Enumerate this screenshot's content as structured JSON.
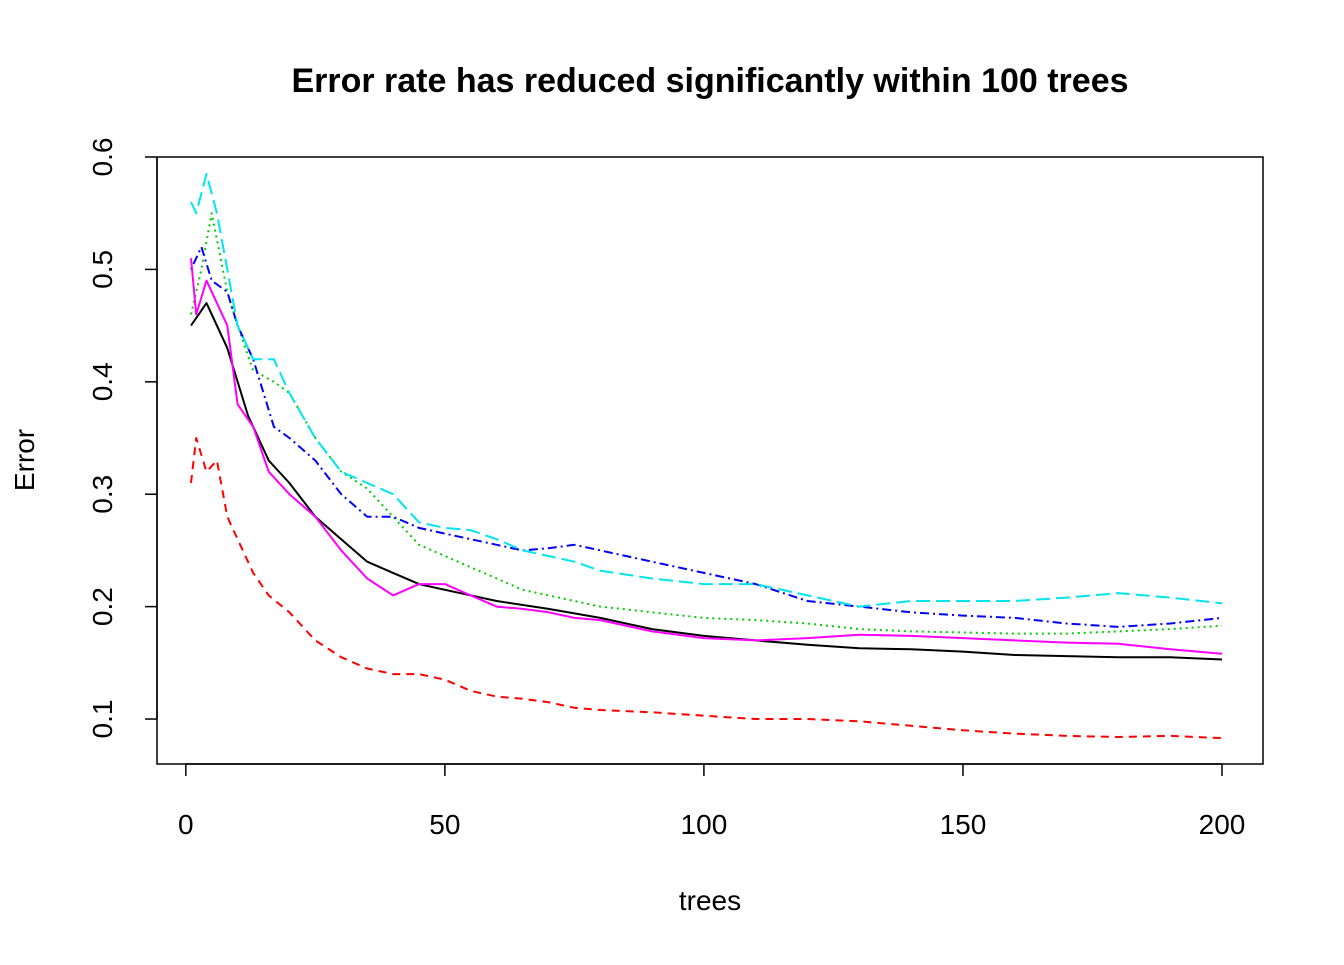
{
  "chart_data": {
    "type": "line",
    "title": "Error rate has reduced significantly within 100 trees",
    "xlabel": "trees",
    "ylabel": "Error",
    "xlim": [
      1,
      200
    ],
    "ylim": [
      0.06,
      0.6
    ],
    "xticks": [
      0,
      50,
      100,
      150,
      200
    ],
    "yticks": [
      0.1,
      0.2,
      0.3,
      0.4,
      0.5,
      0.6
    ],
    "legend": "none",
    "grid": false,
    "series": [
      {
        "color": "#000000",
        "dash": "solid",
        "points": [
          [
            1,
            0.45
          ],
          [
            4,
            0.47
          ],
          [
            8,
            0.43
          ],
          [
            12,
            0.37
          ],
          [
            16,
            0.33
          ],
          [
            20,
            0.31
          ],
          [
            25,
            0.28
          ],
          [
            30,
            0.26
          ],
          [
            35,
            0.24
          ],
          [
            40,
            0.23
          ],
          [
            45,
            0.22
          ],
          [
            50,
            0.215
          ],
          [
            60,
            0.205
          ],
          [
            70,
            0.198
          ],
          [
            80,
            0.19
          ],
          [
            90,
            0.18
          ],
          [
            100,
            0.174
          ],
          [
            110,
            0.17
          ],
          [
            120,
            0.166
          ],
          [
            130,
            0.163
          ],
          [
            140,
            0.162
          ],
          [
            150,
            0.16
          ],
          [
            160,
            0.157
          ],
          [
            170,
            0.156
          ],
          [
            180,
            0.155
          ],
          [
            190,
            0.155
          ],
          [
            200,
            0.153
          ]
        ]
      },
      {
        "color": "#ff0000",
        "dash": "dashed",
        "points": [
          [
            1,
            0.31
          ],
          [
            2,
            0.35
          ],
          [
            4,
            0.32
          ],
          [
            6,
            0.33
          ],
          [
            8,
            0.28
          ],
          [
            10,
            0.26
          ],
          [
            13,
            0.23
          ],
          [
            16,
            0.21
          ],
          [
            20,
            0.195
          ],
          [
            25,
            0.17
          ],
          [
            30,
            0.155
          ],
          [
            35,
            0.145
          ],
          [
            40,
            0.14
          ],
          [
            45,
            0.14
          ],
          [
            50,
            0.135
          ],
          [
            55,
            0.125
          ],
          [
            60,
            0.12
          ],
          [
            65,
            0.118
          ],
          [
            70,
            0.115
          ],
          [
            75,
            0.11
          ],
          [
            80,
            0.108
          ],
          [
            90,
            0.106
          ],
          [
            100,
            0.103
          ],
          [
            110,
            0.1
          ],
          [
            120,
            0.1
          ],
          [
            130,
            0.098
          ],
          [
            140,
            0.094
          ],
          [
            150,
            0.09
          ],
          [
            160,
            0.087
          ],
          [
            170,
            0.085
          ],
          [
            180,
            0.084
          ],
          [
            190,
            0.085
          ],
          [
            200,
            0.083
          ]
        ]
      },
      {
        "color": "#00cd00",
        "dash": "dotted",
        "points": [
          [
            1,
            0.46
          ],
          [
            3,
            0.5
          ],
          [
            5,
            0.55
          ],
          [
            8,
            0.48
          ],
          [
            10,
            0.45
          ],
          [
            13,
            0.41
          ],
          [
            17,
            0.4
          ],
          [
            20,
            0.39
          ],
          [
            25,
            0.35
          ],
          [
            30,
            0.32
          ],
          [
            35,
            0.305
          ],
          [
            40,
            0.28
          ],
          [
            45,
            0.255
          ],
          [
            50,
            0.245
          ],
          [
            55,
            0.235
          ],
          [
            60,
            0.225
          ],
          [
            65,
            0.215
          ],
          [
            70,
            0.21
          ],
          [
            75,
            0.205
          ],
          [
            80,
            0.2
          ],
          [
            90,
            0.195
          ],
          [
            100,
            0.19
          ],
          [
            110,
            0.188
          ],
          [
            120,
            0.185
          ],
          [
            130,
            0.18
          ],
          [
            140,
            0.178
          ],
          [
            150,
            0.177
          ],
          [
            160,
            0.176
          ],
          [
            170,
            0.176
          ],
          [
            180,
            0.178
          ],
          [
            190,
            0.18
          ],
          [
            200,
            0.183
          ]
        ]
      },
      {
        "color": "#0000ff",
        "dash": "dotdash",
        "points": [
          [
            1,
            0.5
          ],
          [
            3,
            0.52
          ],
          [
            5,
            0.49
          ],
          [
            8,
            0.48
          ],
          [
            10,
            0.45
          ],
          [
            13,
            0.42
          ],
          [
            17,
            0.36
          ],
          [
            20,
            0.35
          ],
          [
            25,
            0.33
          ],
          [
            30,
            0.3
          ],
          [
            35,
            0.28
          ],
          [
            40,
            0.28
          ],
          [
            45,
            0.27
          ],
          [
            50,
            0.265
          ],
          [
            55,
            0.26
          ],
          [
            60,
            0.255
          ],
          [
            65,
            0.25
          ],
          [
            70,
            0.252
          ],
          [
            75,
            0.255
          ],
          [
            80,
            0.25
          ],
          [
            90,
            0.24
          ],
          [
            100,
            0.23
          ],
          [
            110,
            0.22
          ],
          [
            120,
            0.205
          ],
          [
            130,
            0.2
          ],
          [
            140,
            0.195
          ],
          [
            150,
            0.192
          ],
          [
            160,
            0.19
          ],
          [
            170,
            0.185
          ],
          [
            180,
            0.182
          ],
          [
            190,
            0.185
          ],
          [
            200,
            0.19
          ]
        ]
      },
      {
        "color": "#00e5ee",
        "dash": "longdash",
        "points": [
          [
            1,
            0.56
          ],
          [
            2,
            0.55
          ],
          [
            4,
            0.585
          ],
          [
            6,
            0.55
          ],
          [
            8,
            0.5
          ],
          [
            10,
            0.45
          ],
          [
            13,
            0.42
          ],
          [
            17,
            0.42
          ],
          [
            20,
            0.39
          ],
          [
            25,
            0.35
          ],
          [
            30,
            0.32
          ],
          [
            35,
            0.31
          ],
          [
            40,
            0.3
          ],
          [
            45,
            0.275
          ],
          [
            50,
            0.27
          ],
          [
            55,
            0.268
          ],
          [
            60,
            0.26
          ],
          [
            65,
            0.25
          ],
          [
            70,
            0.245
          ],
          [
            75,
            0.24
          ],
          [
            80,
            0.232
          ],
          [
            90,
            0.225
          ],
          [
            100,
            0.22
          ],
          [
            110,
            0.22
          ],
          [
            120,
            0.21
          ],
          [
            130,
            0.2
          ],
          [
            140,
            0.205
          ],
          [
            150,
            0.205
          ],
          [
            160,
            0.205
          ],
          [
            170,
            0.208
          ],
          [
            180,
            0.212
          ],
          [
            190,
            0.208
          ],
          [
            200,
            0.203
          ]
        ]
      },
      {
        "color": "#ff00ff",
        "dash": "solid",
        "points": [
          [
            1,
            0.51
          ],
          [
            2,
            0.46
          ],
          [
            4,
            0.49
          ],
          [
            6,
            0.47
          ],
          [
            8,
            0.45
          ],
          [
            10,
            0.38
          ],
          [
            13,
            0.36
          ],
          [
            16,
            0.32
          ],
          [
            20,
            0.3
          ],
          [
            25,
            0.28
          ],
          [
            30,
            0.25
          ],
          [
            35,
            0.225
          ],
          [
            40,
            0.21
          ],
          [
            45,
            0.22
          ],
          [
            50,
            0.22
          ],
          [
            55,
            0.21
          ],
          [
            60,
            0.2
          ],
          [
            65,
            0.198
          ],
          [
            70,
            0.195
          ],
          [
            75,
            0.19
          ],
          [
            80,
            0.188
          ],
          [
            90,
            0.178
          ],
          [
            100,
            0.172
          ],
          [
            110,
            0.17
          ],
          [
            120,
            0.172
          ],
          [
            130,
            0.175
          ],
          [
            140,
            0.174
          ],
          [
            150,
            0.172
          ],
          [
            160,
            0.17
          ],
          [
            170,
            0.168
          ],
          [
            180,
            0.167
          ],
          [
            190,
            0.162
          ],
          [
            200,
            0.158
          ]
        ]
      }
    ]
  }
}
